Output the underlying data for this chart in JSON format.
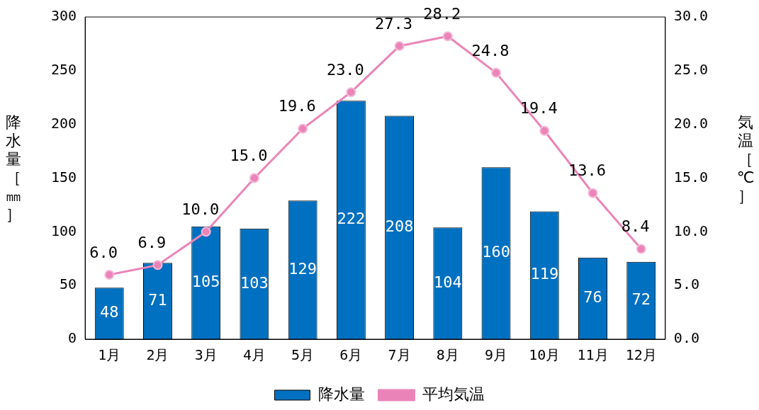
{
  "chart_data": {
    "type": "bar",
    "categories": [
      "1月",
      "2月",
      "3月",
      "4月",
      "5月",
      "6月",
      "7月",
      "8月",
      "9月",
      "10月",
      "11月",
      "12月"
    ],
    "ylabel": "降水量［㎜］",
    "y2label": "気温［℃］",
    "ylim": [
      0,
      300
    ],
    "yticks": [
      0,
      50,
      100,
      150,
      200,
      250,
      300
    ],
    "y2lim": [
      0,
      30
    ],
    "y2ticks": [
      {
        "value": 0,
        "label": "0.0"
      },
      {
        "value": 5,
        "label": "5.0"
      },
      {
        "value": 10,
        "label": "10.0"
      },
      {
        "value": 15,
        "label": "15.0"
      },
      {
        "value": 20,
        "label": "20.0"
      },
      {
        "value": 25,
        "label": "25.0"
      },
      {
        "value": 30,
        "label": "30.0"
      }
    ],
    "grid": false,
    "legend": "bottom",
    "data_labels": true,
    "series": [
      {
        "name": "降水量",
        "color": "#0070c0",
        "values": [
          48,
          71,
          105,
          103,
          129,
          222,
          208,
          104,
          160,
          119,
          76,
          72
        ]
      },
      {
        "name": "平均気温",
        "type": "line",
        "axis": "y2",
        "color": "#ea84b8",
        "marker": "circle",
        "values": [
          6.0,
          6.9,
          10.0,
          15.0,
          19.6,
          23.0,
          27.3,
          28.2,
          24.8,
          19.4,
          13.6,
          8.4
        ],
        "value_labels": [
          "6.0",
          "6.9",
          "10.0",
          "15.0",
          "19.6",
          "23.0",
          "27.3",
          "28.2",
          "24.8",
          "19.4",
          "13.6",
          "8.4"
        ]
      }
    ]
  }
}
